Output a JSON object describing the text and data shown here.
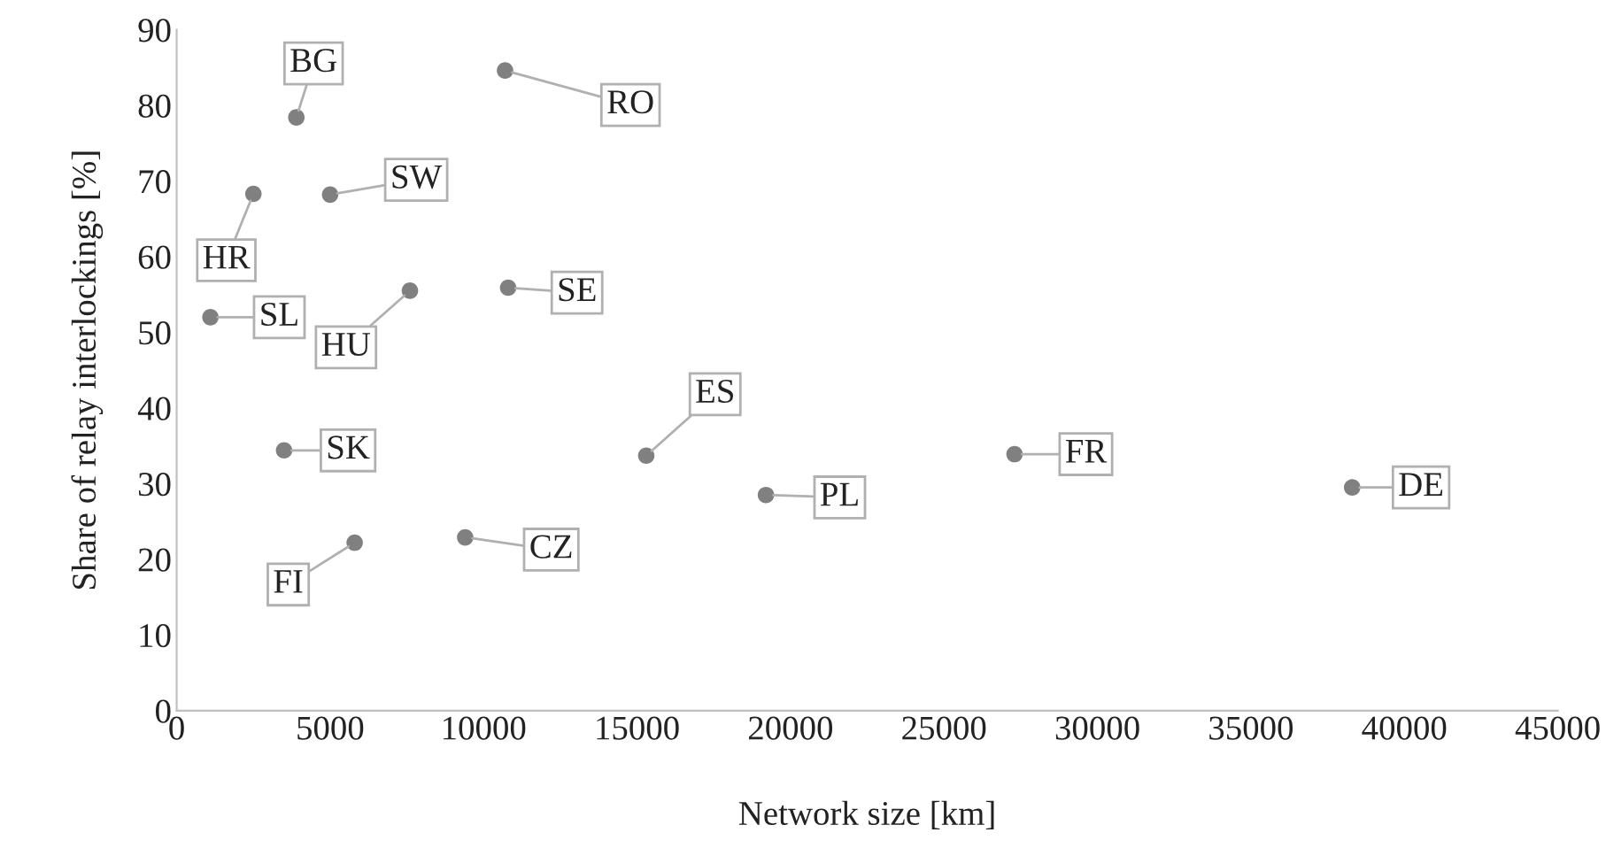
{
  "chart_data": {
    "type": "scatter",
    "xlabel": "Network size [km]",
    "ylabel": "Share of relay interlockings [%]",
    "x": [
      3900,
      10700,
      2500,
      5000,
      1100,
      7600,
      10800,
      3500,
      5800,
      9400,
      15300,
      19200,
      27300,
      38300
    ],
    "values": [
      78.4,
      84.6,
      68.3,
      68.2,
      52.0,
      55.5,
      55.9,
      34.4,
      22.2,
      22.9,
      33.7,
      28.5,
      33.9,
      29.5
    ],
    "color": "#808080",
    "marker": "circle",
    "grid": false,
    "legend": false,
    "xlim": [
      0,
      45000
    ],
    "xticks": [
      0,
      5000,
      10000,
      15000,
      20000,
      25000,
      30000,
      35000,
      40000,
      45000
    ],
    "ylim": [
      0,
      90
    ],
    "yticks": [
      0,
      10,
      20,
      30,
      40,
      50,
      60,
      70,
      80,
      90
    ],
    "annotations": [
      {
        "text": "BG",
        "x": 3900,
        "y": 78.4
      },
      {
        "text": "RO",
        "x": 10700,
        "y": 84.6
      },
      {
        "text": "HR",
        "x": 2500,
        "y": 68.3
      },
      {
        "text": "SW",
        "x": 5000,
        "y": 68.2
      },
      {
        "text": "SL",
        "x": 1100,
        "y": 52.0
      },
      {
        "text": "HU",
        "x": 7600,
        "y": 55.5
      },
      {
        "text": "SE",
        "x": 10800,
        "y": 55.9
      },
      {
        "text": "SK",
        "x": 3500,
        "y": 34.4
      },
      {
        "text": "FI",
        "x": 5800,
        "y": 22.2
      },
      {
        "text": "CZ",
        "x": 9400,
        "y": 22.9
      },
      {
        "text": "ES",
        "x": 15300,
        "y": 33.7
      },
      {
        "text": "PL",
        "x": 19200,
        "y": 28.5
      },
      {
        "text": "FR",
        "x": 27300,
        "y": 33.9
      },
      {
        "text": "DE",
        "x": 38300,
        "y": 29.5
      }
    ]
  }
}
